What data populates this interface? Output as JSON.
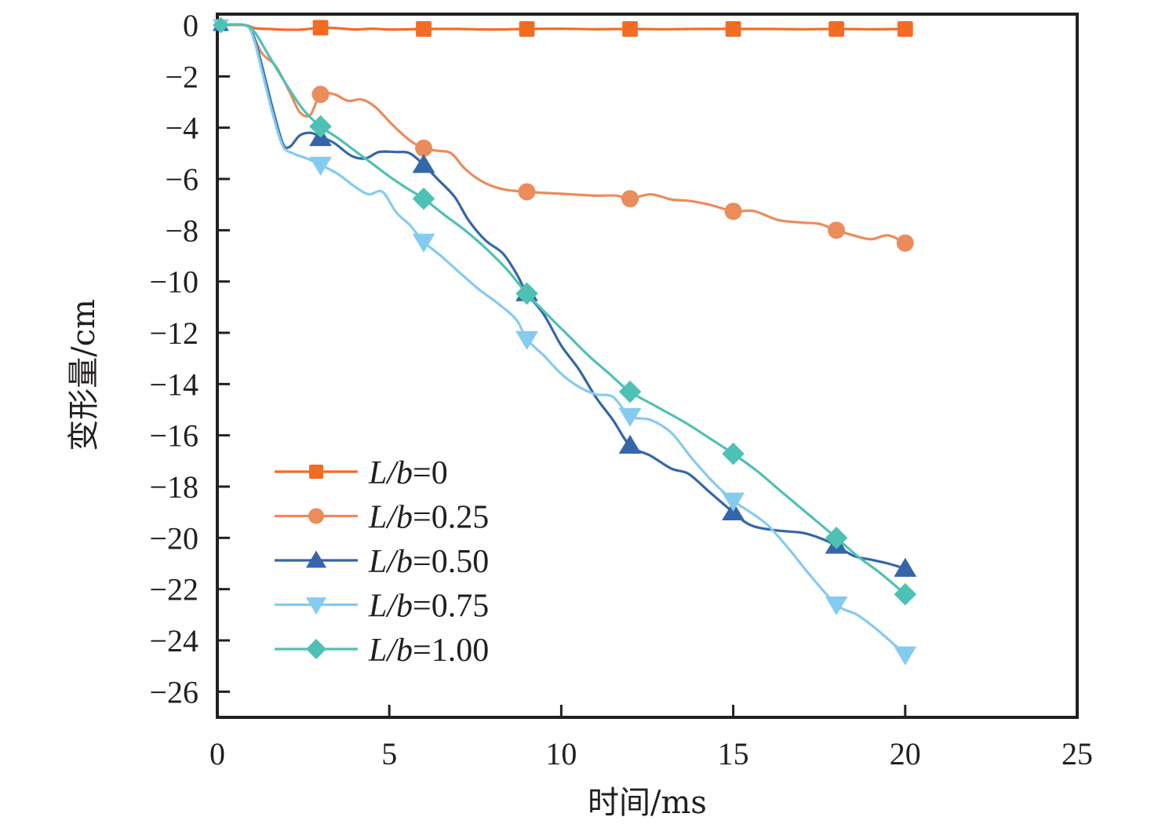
{
  "chart_data": {
    "type": "line",
    "title": "",
    "xlabel": "时间/ms",
    "ylabel": "变形量/cm",
    "xlim": [
      0,
      25
    ],
    "ylim": [
      -27,
      0.43
    ],
    "xticks": [
      0,
      5,
      10,
      15,
      20,
      25
    ],
    "xtick_labels": [
      "0",
      "5",
      "10",
      "15",
      "20",
      "25"
    ],
    "yticks": [
      0,
      -2,
      -4,
      -6,
      -8,
      -10,
      -12,
      -14,
      -16,
      -18,
      -20,
      -22,
      -24,
      -26
    ],
    "ytick_labels": [
      "0",
      "−2",
      "−4",
      "−6",
      "−8",
      "−10",
      "−12",
      "−14",
      "−16",
      "−18",
      "−20",
      "−22",
      "−24",
      "−26"
    ],
    "grid": false,
    "legend_position": "lower-left",
    "series": [
      {
        "name": "L/b=0",
        "label_italic": "L/b",
        "label_value": "=0",
        "color": "#f26c24",
        "marker": "square",
        "marker_x": [
          3,
          6,
          9,
          12,
          15,
          18,
          20
        ],
        "marker_y": [
          -0.1,
          -0.15,
          -0.15,
          -0.15,
          -0.15,
          -0.15,
          -0.15
        ],
        "curve": [
          [
            0,
            0
          ],
          [
            0.8,
            0
          ],
          [
            1.1,
            -0.12
          ],
          [
            1.5,
            -0.15
          ],
          [
            2,
            -0.18
          ],
          [
            2.5,
            -0.17
          ],
          [
            3,
            -0.1
          ],
          [
            3.5,
            -0.12
          ],
          [
            4,
            -0.17
          ],
          [
            4.5,
            -0.14
          ],
          [
            5,
            -0.17
          ],
          [
            6,
            -0.15
          ],
          [
            7,
            -0.15
          ],
          [
            8,
            -0.17
          ],
          [
            9,
            -0.15
          ],
          [
            10,
            -0.14
          ],
          [
            11,
            -0.16
          ],
          [
            12,
            -0.15
          ],
          [
            13,
            -0.16
          ],
          [
            14,
            -0.15
          ],
          [
            15,
            -0.15
          ],
          [
            16,
            -0.15
          ],
          [
            17,
            -0.16
          ],
          [
            18,
            -0.15
          ],
          [
            19,
            -0.16
          ],
          [
            20,
            -0.15
          ]
        ]
      },
      {
        "name": "L/b=0.25",
        "label_italic": "L/b",
        "label_value": "=0.25",
        "color": "#ea8c5b",
        "marker": "circle",
        "marker_x": [
          3,
          6,
          9,
          12,
          15,
          18,
          20
        ],
        "marker_y": [
          -2.7,
          -4.8,
          -6.5,
          -6.77,
          -7.26,
          -8.0,
          -8.5
        ],
        "curve": [
          [
            0,
            0
          ],
          [
            0.8,
            0
          ],
          [
            1.0,
            -0.3
          ],
          [
            1.3,
            -1.1
          ],
          [
            1.7,
            -1.6
          ],
          [
            2.1,
            -2.6
          ],
          [
            2.4,
            -3.4
          ],
          [
            2.7,
            -3.5
          ],
          [
            3,
            -2.7
          ],
          [
            3.4,
            -2.7
          ],
          [
            3.8,
            -2.95
          ],
          [
            4.2,
            -2.9
          ],
          [
            4.6,
            -3.2
          ],
          [
            5.1,
            -3.9
          ],
          [
            5.6,
            -4.5
          ],
          [
            6,
            -4.8
          ],
          [
            6.4,
            -4.9
          ],
          [
            6.8,
            -5.0
          ],
          [
            7.2,
            -5.6
          ],
          [
            7.7,
            -6.1
          ],
          [
            8.3,
            -6.4
          ],
          [
            9,
            -6.5
          ],
          [
            9.6,
            -6.55
          ],
          [
            10.3,
            -6.6
          ],
          [
            11,
            -6.65
          ],
          [
            11.6,
            -6.65
          ],
          [
            12,
            -6.77
          ],
          [
            12.6,
            -6.6
          ],
          [
            13.2,
            -6.8
          ],
          [
            13.7,
            -6.85
          ],
          [
            14.3,
            -7.0
          ],
          [
            15,
            -7.26
          ],
          [
            15.6,
            -7.25
          ],
          [
            16.3,
            -7.6
          ],
          [
            17,
            -7.7
          ],
          [
            17.5,
            -7.75
          ],
          [
            18,
            -8.0
          ],
          [
            18.5,
            -8.2
          ],
          [
            19,
            -8.35
          ],
          [
            19.5,
            -8.2
          ],
          [
            20,
            -8.5
          ]
        ]
      },
      {
        "name": "L/b=0.50",
        "label_italic": "L/b",
        "label_value": "=0.50",
        "color": "#3566a9",
        "marker": "triangle-up",
        "marker_x": [
          3,
          6,
          9,
          12,
          15,
          18,
          20
        ],
        "marker_y": [
          -4.4,
          -5.45,
          -10.45,
          -16.4,
          -19.0,
          -20.3,
          -21.2
        ],
        "curve": [
          [
            0,
            0
          ],
          [
            0.8,
            0
          ],
          [
            1.05,
            -0.4
          ],
          [
            1.3,
            -1.6
          ],
          [
            1.6,
            -3.2
          ],
          [
            1.9,
            -4.6
          ],
          [
            2.1,
            -4.75
          ],
          [
            2.4,
            -4.3
          ],
          [
            2.7,
            -4.2
          ],
          [
            3,
            -4.35
          ],
          [
            3.4,
            -4.6
          ],
          [
            3.9,
            -5.1
          ],
          [
            4.3,
            -5.2
          ],
          [
            4.7,
            -4.95
          ],
          [
            5.2,
            -4.95
          ],
          [
            5.6,
            -5.0
          ],
          [
            6,
            -5.45
          ],
          [
            6.4,
            -6.0
          ],
          [
            6.9,
            -6.7
          ],
          [
            7.3,
            -7.6
          ],
          [
            7.8,
            -8.4
          ],
          [
            8.3,
            -8.9
          ],
          [
            8.7,
            -9.7
          ],
          [
            9,
            -10.45
          ],
          [
            9.5,
            -11.3
          ],
          [
            10,
            -12.5
          ],
          [
            10.5,
            -13.4
          ],
          [
            11,
            -14.5
          ],
          [
            11.5,
            -15.4
          ],
          [
            12,
            -16.4
          ],
          [
            12.6,
            -16.8
          ],
          [
            13.2,
            -17.3
          ],
          [
            13.7,
            -17.5
          ],
          [
            14.3,
            -18.2
          ],
          [
            15,
            -19.0
          ],
          [
            15.5,
            -19.5
          ],
          [
            16.2,
            -19.7
          ],
          [
            17,
            -19.8
          ],
          [
            17.5,
            -20.0
          ],
          [
            18,
            -20.3
          ],
          [
            18.5,
            -20.7
          ],
          [
            19,
            -20.85
          ],
          [
            19.5,
            -21.0
          ],
          [
            20,
            -21.2
          ]
        ]
      },
      {
        "name": "L/b=0.75",
        "label_italic": "L/b",
        "label_value": "=0.75",
        "color": "#85cbef",
        "marker": "triangle-down",
        "marker_x": [
          3,
          6,
          9,
          12,
          15,
          18,
          20
        ],
        "marker_y": [
          -5.45,
          -8.45,
          -12.25,
          -15.25,
          -18.55,
          -22.6,
          -24.55
        ],
        "curve": [
          [
            0,
            0
          ],
          [
            0.8,
            0
          ],
          [
            1.05,
            -0.5
          ],
          [
            1.3,
            -1.8
          ],
          [
            1.6,
            -3.4
          ],
          [
            1.9,
            -4.7
          ],
          [
            2.2,
            -5.0
          ],
          [
            2.6,
            -5.2
          ],
          [
            3,
            -5.45
          ],
          [
            3.5,
            -5.8
          ],
          [
            4,
            -6.3
          ],
          [
            4.4,
            -6.6
          ],
          [
            4.8,
            -6.5
          ],
          [
            5.2,
            -7.3
          ],
          [
            5.6,
            -7.8
          ],
          [
            6,
            -8.45
          ],
          [
            6.5,
            -9.0
          ],
          [
            7,
            -9.6
          ],
          [
            7.6,
            -10.3
          ],
          [
            8.2,
            -10.9
          ],
          [
            8.7,
            -11.5
          ],
          [
            9,
            -12.25
          ],
          [
            9.5,
            -12.9
          ],
          [
            10,
            -13.6
          ],
          [
            10.5,
            -14.1
          ],
          [
            11,
            -14.4
          ],
          [
            11.5,
            -14.5
          ],
          [
            12,
            -15.25
          ],
          [
            12.6,
            -15.4
          ],
          [
            13.2,
            -15.9
          ],
          [
            13.8,
            -16.9
          ],
          [
            14.4,
            -17.8
          ],
          [
            15,
            -18.55
          ],
          [
            15.5,
            -19.0
          ],
          [
            16,
            -19.5
          ],
          [
            16.6,
            -20.4
          ],
          [
            17.2,
            -21.4
          ],
          [
            18,
            -22.6
          ],
          [
            18.6,
            -23.0
          ],
          [
            19.2,
            -23.6
          ],
          [
            20,
            -24.55
          ]
        ]
      },
      {
        "name": "L/b=1.00",
        "label_italic": "L/b",
        "label_value": "=1.00",
        "color": "#4fc1b4",
        "marker": "diamond",
        "marker_x": [
          3,
          6,
          9,
          12,
          15,
          18,
          20
        ],
        "marker_y": [
          -3.95,
          -6.77,
          -10.47,
          -14.3,
          -16.72,
          -20.0,
          -22.2
        ],
        "curve": [
          [
            0,
            0
          ],
          [
            0.8,
            0
          ],
          [
            1.1,
            -0.3
          ],
          [
            1.5,
            -1.2
          ],
          [
            2,
            -2.3
          ],
          [
            2.5,
            -3.3
          ],
          [
            3,
            -3.95
          ],
          [
            3.5,
            -4.4
          ],
          [
            4,
            -4.9
          ],
          [
            4.5,
            -5.4
          ],
          [
            5,
            -5.9
          ],
          [
            5.5,
            -6.35
          ],
          [
            6,
            -6.77
          ],
          [
            6.6,
            -7.4
          ],
          [
            7.2,
            -8.0
          ],
          [
            7.8,
            -8.7
          ],
          [
            8.4,
            -9.5
          ],
          [
            9,
            -10.47
          ],
          [
            9.6,
            -11.3
          ],
          [
            10.2,
            -12.1
          ],
          [
            10.8,
            -12.9
          ],
          [
            11.4,
            -13.6
          ],
          [
            12,
            -14.3
          ],
          [
            12.8,
            -14.9
          ],
          [
            13.6,
            -15.5
          ],
          [
            14.3,
            -16.1
          ],
          [
            15,
            -16.72
          ],
          [
            15.7,
            -17.4
          ],
          [
            16.4,
            -18.2
          ],
          [
            17.2,
            -19.1
          ],
          [
            18,
            -20.0
          ],
          [
            18.6,
            -20.7
          ],
          [
            19.3,
            -21.4
          ],
          [
            20,
            -22.2
          ]
        ]
      }
    ]
  }
}
